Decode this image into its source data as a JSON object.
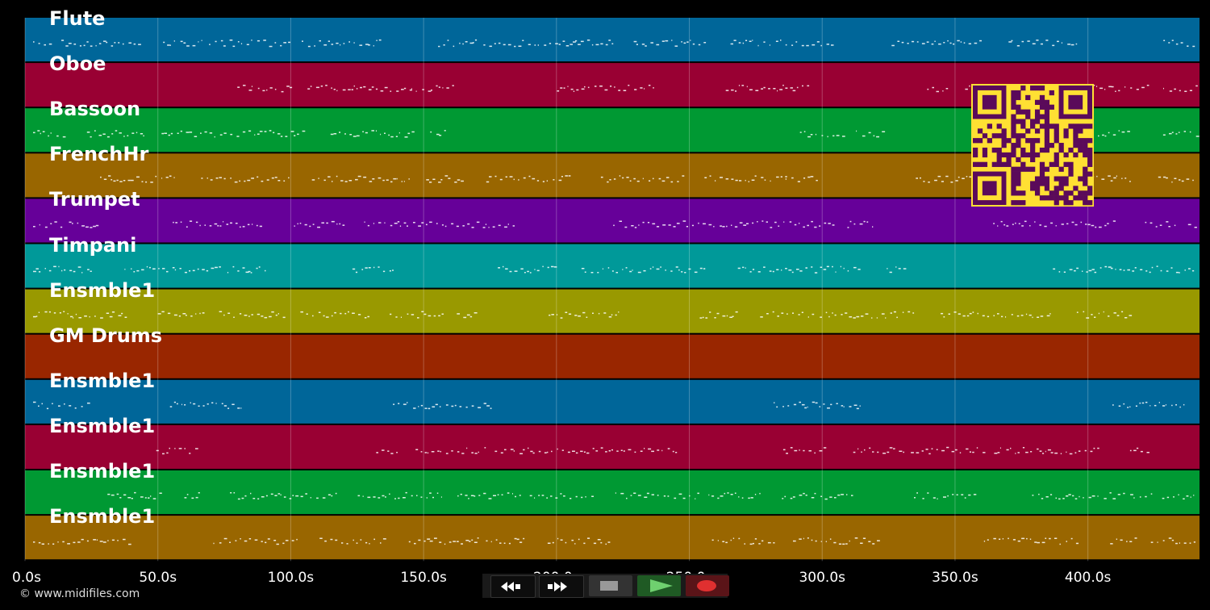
{
  "tracks": [
    {
      "name": "Flute",
      "color": "#006699"
    },
    {
      "name": "Oboe",
      "color": "#990033"
    },
    {
      "name": "Bassoon",
      "color": "#009933"
    },
    {
      "name": "FrenchHr",
      "color": "#996600"
    },
    {
      "name": "Trumpet",
      "color": "#660099"
    },
    {
      "name": "Timpani",
      "color": "#009999"
    },
    {
      "name": "Ensmble1",
      "color": "#999900"
    },
    {
      "name": "GM Drums",
      "color": "#992600"
    },
    {
      "name": "Ensmble1",
      "color": "#006699"
    },
    {
      "name": "Ensmble1",
      "color": "#990033"
    },
    {
      "name": "Ensmble1",
      "color": "#009933"
    },
    {
      "name": "Ensmble1",
      "color": "#996600"
    }
  ],
  "time_axis": {
    "ticks": [
      "0.0s",
      "50.0s",
      "100.0s",
      "150.0s",
      "200.0s",
      "250.0s",
      "300.0s",
      "350.0s",
      "400.0s"
    ],
    "tick_seconds": [
      0,
      50,
      100,
      150,
      200,
      250,
      300,
      350,
      400
    ],
    "max_seconds": 442
  },
  "copyright": "© www.midifiles.com",
  "transport": {
    "rewind_icon": "rewind-icon",
    "forward_icon": "fast-forward-icon",
    "stop_icon": "stop-icon",
    "play_icon": "play-icon",
    "record_icon": "record-icon"
  },
  "qr_colors": {
    "fg": "#5a0a5a",
    "bg": "#ffe033"
  }
}
